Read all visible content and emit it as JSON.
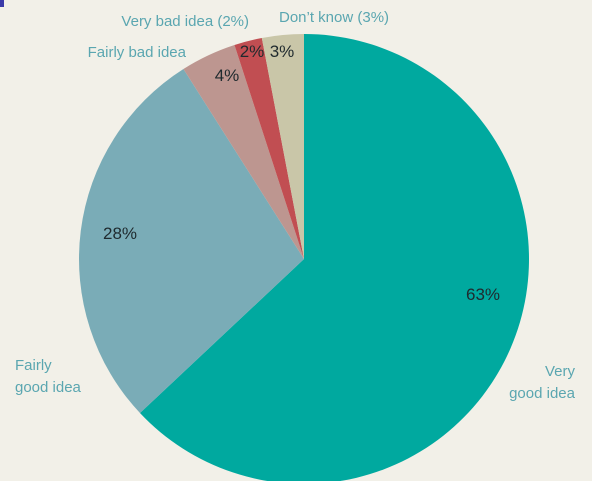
{
  "chart_data": {
    "type": "pie",
    "slices": [
      {
        "category": "Very\ngood idea",
        "value": 63,
        "pct_label": "63%",
        "color": "#00a99f"
      },
      {
        "category": "Fairly\ngood idea",
        "value": 28,
        "pct_label": "28%",
        "color": "#7aacb7"
      },
      {
        "category": "Fairly bad idea",
        "value": 4,
        "pct_label": "4%",
        "color": "#bd9690"
      },
      {
        "category": "Very bad idea (2%)",
        "value": 2,
        "pct_label": "2%",
        "color": "#c14e52"
      },
      {
        "category": "Don’t know (3%)",
        "value": 3,
        "pct_label": "3%",
        "color": "#c9c6a8"
      }
    ],
    "start_angle": "12 o'clock",
    "direction": "clockwise",
    "legend": "none"
  },
  "colors": {
    "background": "#f2f0e8",
    "label_text": "#5aa6b0",
    "pct_text": "#1f2a2e"
  }
}
